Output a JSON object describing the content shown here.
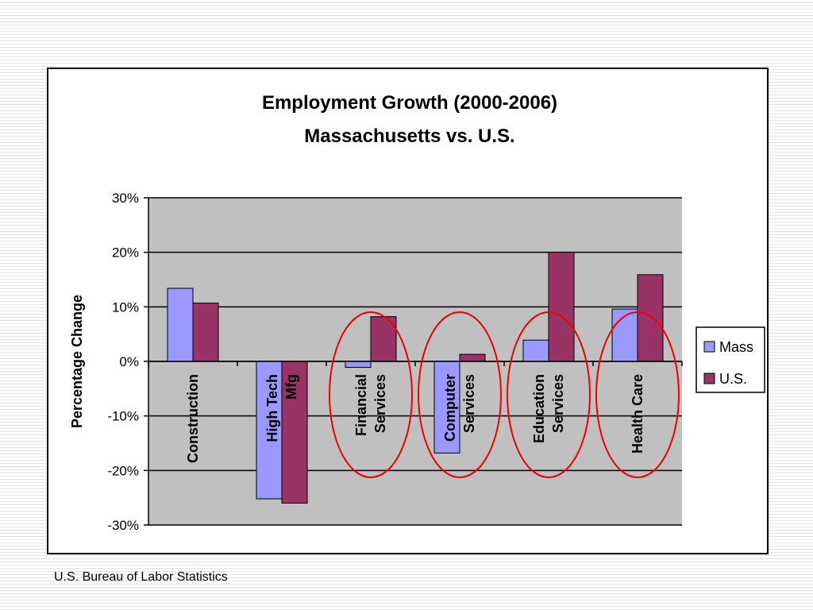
{
  "chart_data": {
    "type": "bar",
    "title": "Employment Growth (2000-2006)",
    "subtitle": "Massachusetts vs. U.S.",
    "ylabel": "Percentage Change",
    "xlabel": "",
    "ylim": [
      -30,
      30
    ],
    "yticks": [
      30,
      20,
      10,
      0,
      -10,
      -20,
      -30
    ],
    "ytick_labels": [
      "30%",
      "20%",
      "10%",
      "0%",
      "-10%",
      "-20%",
      "-30%"
    ],
    "categories": [
      [
        "Construction"
      ],
      [
        "High Tech",
        "Mfg"
      ],
      [
        "Financial",
        "Services"
      ],
      [
        "Computer",
        "Services"
      ],
      [
        "Education",
        "Services"
      ],
      [
        "Health Care"
      ]
    ],
    "series": [
      {
        "name": "Mass",
        "color": "#9999ff",
        "values": [
          13.4,
          -25.2,
          -1.1,
          -16.8,
          3.9,
          9.6
        ]
      },
      {
        "name": "U.S.",
        "color": "#993366",
        "values": [
          10.7,
          -26.0,
          8.2,
          1.3,
          20.0,
          15.9
        ]
      }
    ],
    "plot_background": "#c0c0c0",
    "grid": true,
    "legend": "right",
    "highlighted_categories": [
      2,
      3,
      4,
      5
    ],
    "highlight_color": "#ee0000"
  },
  "source_note": "U.S. Bureau of Labor Statistics"
}
